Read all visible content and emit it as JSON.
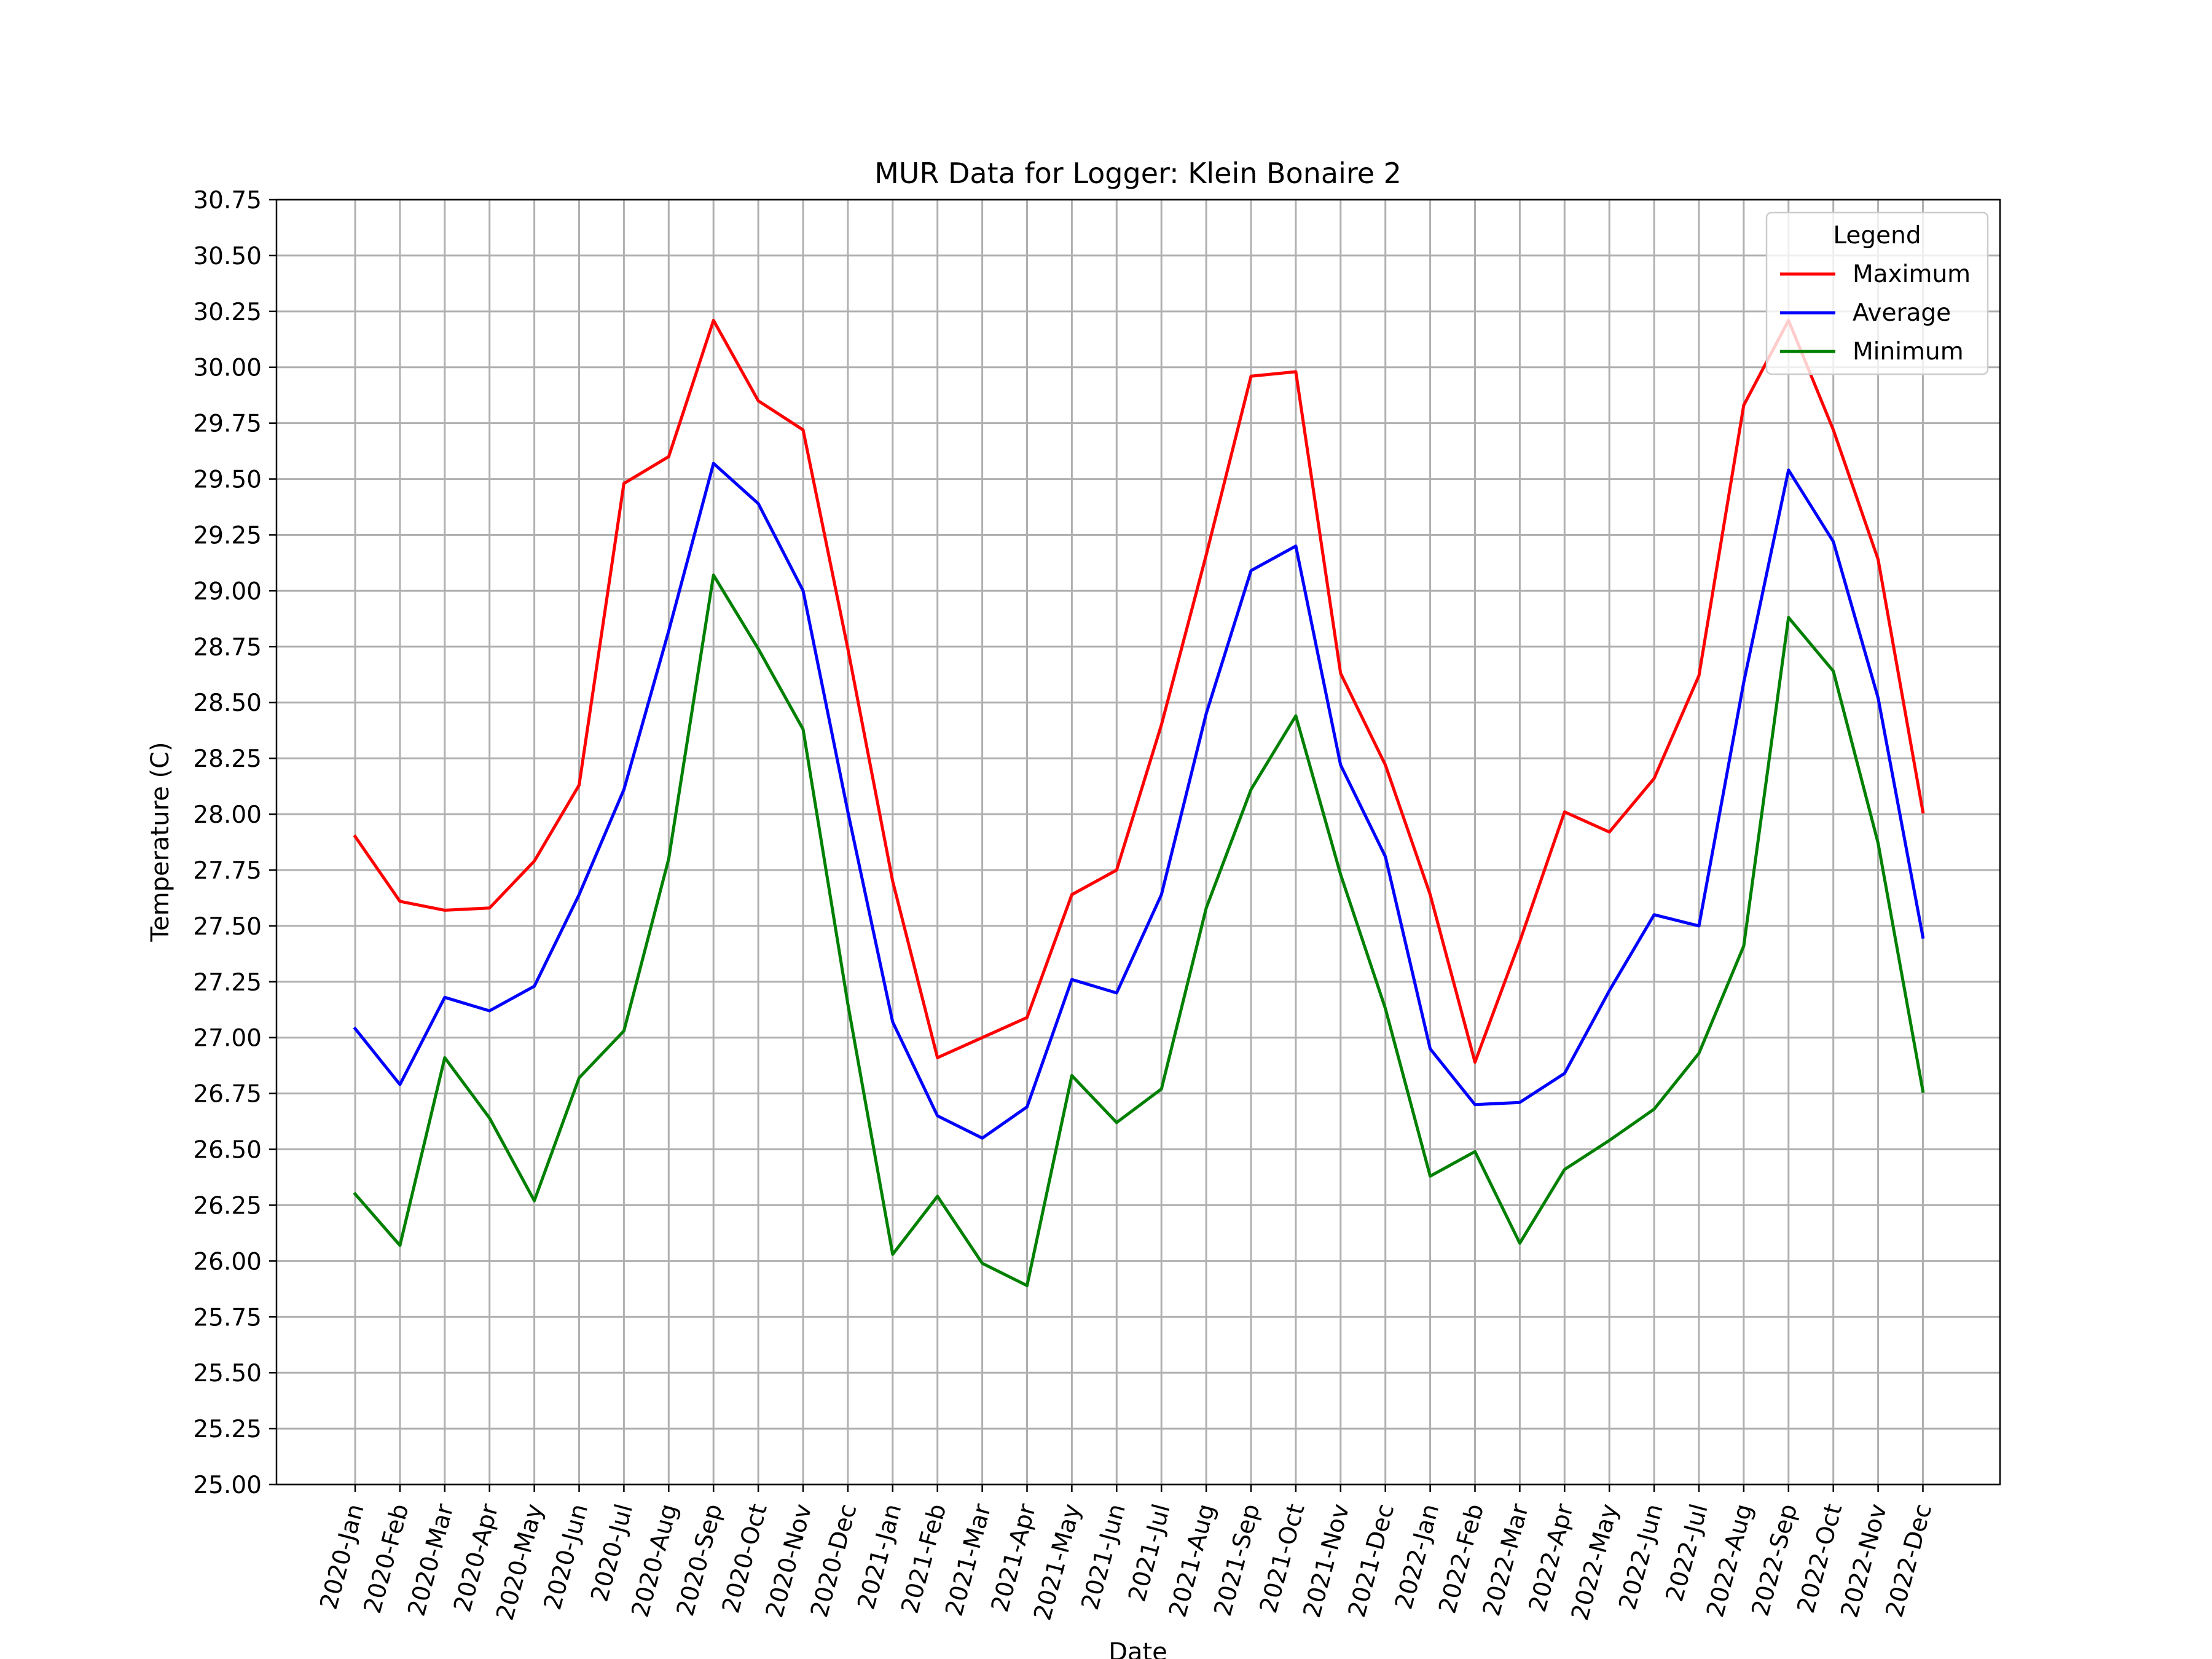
{
  "chart_data": {
    "type": "line",
    "title": "MUR Data for Logger: Klein Bonaire 2",
    "xlabel": "Date",
    "ylabel": "Temperature (C)",
    "ylim": [
      25.0,
      30.75
    ],
    "yticks": [
      "25.00",
      "25.25",
      "25.50",
      "25.75",
      "26.00",
      "26.25",
      "26.50",
      "26.75",
      "27.00",
      "27.25",
      "27.50",
      "27.75",
      "28.00",
      "28.25",
      "28.50",
      "28.75",
      "29.00",
      "29.25",
      "29.50",
      "29.75",
      "30.00",
      "30.25",
      "30.50",
      "30.75"
    ],
    "grid": true,
    "legend": {
      "title": "Legend",
      "placement": "upper-right"
    },
    "categories": [
      "2020-Jan",
      "2020-Feb",
      "2020-Mar",
      "2020-Apr",
      "2020-May",
      "2020-Jun",
      "2020-Jul",
      "2020-Aug",
      "2020-Sep",
      "2020-Oct",
      "2020-Nov",
      "2020-Dec",
      "2021-Jan",
      "2021-Feb",
      "2021-Mar",
      "2021-Apr",
      "2021-May",
      "2021-Jun",
      "2021-Jul",
      "2021-Aug",
      "2021-Sep",
      "2021-Oct",
      "2021-Nov",
      "2021-Dec",
      "2022-Jan",
      "2022-Feb",
      "2022-Mar",
      "2022-Apr",
      "2022-May",
      "2022-Jun",
      "2022-Jul",
      "2022-Aug",
      "2022-Sep",
      "2022-Oct",
      "2022-Nov",
      "2022-Dec"
    ],
    "series": [
      {
        "name": "Maximum",
        "color": "#ff0000",
        "values": [
          27.9,
          27.61,
          27.57,
          27.58,
          27.79,
          28.13,
          29.48,
          29.6,
          30.21,
          29.85,
          29.72,
          28.74,
          27.7,
          26.91,
          27.0,
          27.09,
          27.64,
          27.75,
          28.4,
          29.16,
          29.96,
          29.98,
          28.63,
          28.22,
          27.64,
          26.89,
          27.43,
          28.01,
          27.92,
          28.16,
          28.62,
          29.83,
          30.21,
          29.72,
          29.14,
          28.01
        ]
      },
      {
        "name": "Average",
        "color": "#0000ff",
        "values": [
          27.04,
          26.79,
          27.18,
          27.12,
          27.23,
          27.64,
          28.11,
          28.82,
          29.57,
          29.39,
          29.0,
          28.01,
          27.07,
          26.65,
          26.55,
          26.69,
          27.26,
          27.2,
          27.64,
          28.45,
          29.09,
          29.2,
          28.22,
          27.81,
          26.95,
          26.7,
          26.71,
          26.84,
          27.21,
          27.55,
          27.5,
          28.59,
          29.54,
          29.22,
          28.52,
          27.45
        ]
      },
      {
        "name": "Minimum",
        "color": "#008000",
        "values": [
          26.3,
          26.07,
          26.91,
          26.64,
          26.27,
          26.82,
          27.03,
          27.8,
          29.07,
          28.74,
          28.38,
          27.15,
          26.03,
          26.29,
          25.99,
          25.89,
          26.83,
          26.62,
          26.77,
          27.58,
          28.11,
          28.44,
          27.73,
          27.13,
          26.38,
          26.49,
          26.08,
          26.41,
          26.54,
          26.68,
          26.93,
          27.41,
          28.88,
          28.64,
          27.87,
          26.76
        ]
      }
    ]
  }
}
